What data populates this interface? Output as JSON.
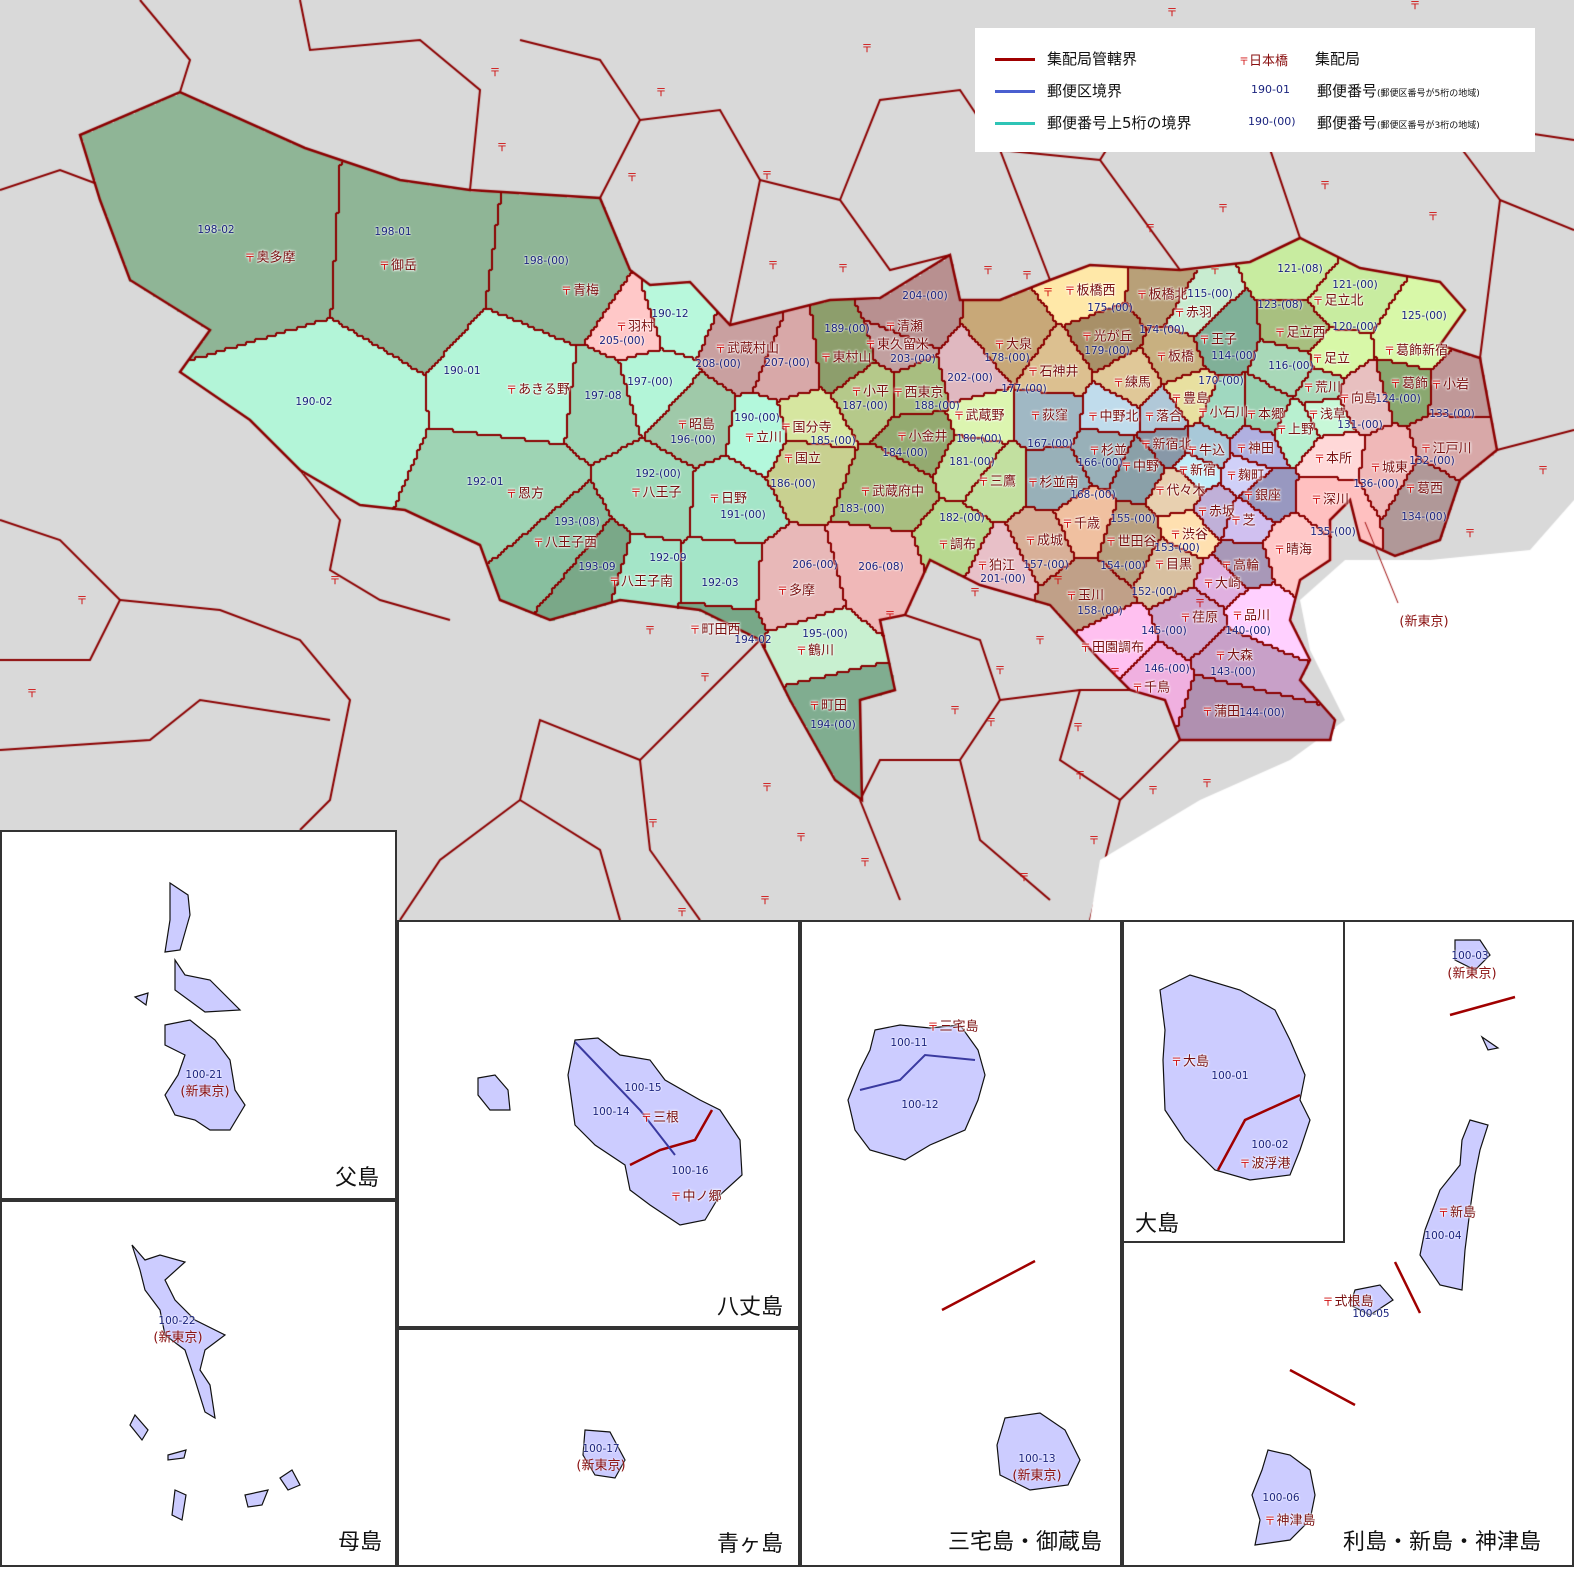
{
  "legend": {
    "items": [
      {
        "label": "集配局管轄界",
        "color": "#a00000"
      },
      {
        "label": "郵便区境界",
        "color": "#4a5fd0"
      },
      {
        "label": "郵便番号上5桁の境界",
        "color": "#2ec4b6"
      }
    ],
    "office_sample": "日本橋",
    "office_label": "集配局",
    "code5_sample": "190-01",
    "code5_label": "郵便番号",
    "code5_note": "(郵便区番号が5桁の地域)",
    "code3_sample": "190-(00)",
    "code3_label": "郵便番号",
    "code3_note": "(郵便区番号が3桁の地域)"
  },
  "map": {
    "labels": [
      {
        "office": "奥多摩",
        "code": "198-02"
      },
      {
        "office": "御岳",
        "code": "198-01"
      },
      {
        "office": "青梅",
        "code": "198-(00)"
      },
      {
        "office": "羽村",
        "code": "205-(00)"
      },
      {
        "office": null,
        "code": "190-12"
      },
      {
        "office": "武蔵村山",
        "code": "208-(00)"
      },
      {
        "office": null,
        "code": "207-(00)"
      },
      {
        "office": "東村山",
        "code": "189-(00)"
      },
      {
        "office": "清瀬",
        "code": "204-(00)"
      },
      {
        "office": "東久留米",
        "code": "203-(00)"
      },
      {
        "office": "あきる野",
        "code": "190-01"
      },
      {
        "office": null,
        "code": "197-08"
      },
      {
        "office": null,
        "code": "197-(00)"
      },
      {
        "office": null,
        "code": "190-02"
      },
      {
        "office": "昭島",
        "code": "196-(00)"
      },
      {
        "office": "立川",
        "code": "190-(00)"
      },
      {
        "office": "小平",
        "code": "187-(00)"
      },
      {
        "office": "西東京",
        "code": "188-(00)"
      },
      {
        "office": null,
        "code": "202-(00)"
      },
      {
        "office": "大泉",
        "code": "178-(00)"
      },
      {
        "office": "石神井",
        "code": "177-(00)"
      },
      {
        "office": "国分寺",
        "code": "185-(00)"
      },
      {
        "office": "小金井",
        "code": "184-(00)"
      },
      {
        "office": "武蔵野",
        "code": "180-(00)"
      },
      {
        "office": "国立",
        "code": "186-(00)"
      },
      {
        "office": null,
        "code": "181-(00)"
      },
      {
        "office": "三鷹",
        "code": null
      },
      {
        "office": "武蔵府中",
        "code": "183-(00)"
      },
      {
        "office": "恩方",
        "code": "192-01"
      },
      {
        "office": "八王子",
        "code": "192-(00)"
      },
      {
        "office": "日野",
        "code": "191-(00)"
      },
      {
        "office": "八王子西",
        "code": "193-(08)"
      },
      {
        "office": null,
        "code": "193-09"
      },
      {
        "office": "八王子南",
        "code": "192-09"
      },
      {
        "office": null,
        "code": "192-03"
      },
      {
        "office": "多摩",
        "code": "206-(00)"
      },
      {
        "office": null,
        "code": "206-(08)"
      },
      {
        "office": "調布",
        "code": "182-(00)"
      },
      {
        "office": "狛江",
        "code": "201-(00)"
      },
      {
        "office": "町田西",
        "code": "194-02"
      },
      {
        "office": "鶴川",
        "code": "195-(00)"
      },
      {
        "office": "町田",
        "code": "194-(00)"
      },
      {
        "office": "板橋西",
        "code": "175-(00)"
      },
      {
        "office": "板橋北",
        "code": "174-(00)"
      },
      {
        "office": "赤羽",
        "code": "115-(00)"
      },
      {
        "office": "光が丘",
        "code": "179-(00)"
      },
      {
        "office": "板橋",
        "code": null
      },
      {
        "office": "王子",
        "code": "114-(00)"
      },
      {
        "office": "足立北",
        "code": "121-(00)"
      },
      {
        "office": null,
        "code": "121-(08)"
      },
      {
        "office": "足立西",
        "code": "123-(08)"
      },
      {
        "office": "足立",
        "code": "120-(00)"
      },
      {
        "office": "葛飾新宿",
        "code": "125-(00)"
      },
      {
        "office": null,
        "code": "116-(00)"
      },
      {
        "office": "豊島",
        "code": "170-(00)"
      },
      {
        "office": "荒川",
        "code": null
      },
      {
        "office": "練馬",
        "code": null
      },
      {
        "office": "葛飾",
        "code": "124-(00)"
      },
      {
        "office": "小岩",
        "code": "133-(00)"
      },
      {
        "office": "向島",
        "code": "131-(00)"
      },
      {
        "office": "荻窪",
        "code": "167-(00)"
      },
      {
        "office": "中野北",
        "code": null
      },
      {
        "office": "落合",
        "code": null
      },
      {
        "office": "小石川",
        "code": null
      },
      {
        "office": "本郷",
        "code": null
      },
      {
        "office": "浅草",
        "code": null
      },
      {
        "office": "上野",
        "code": null
      },
      {
        "office": "杉並",
        "code": "166-(00)"
      },
      {
        "office": "中野",
        "code": null
      },
      {
        "office": "新宿北",
        "code": null
      },
      {
        "office": "牛込",
        "code": null
      },
      {
        "office": "神田",
        "code": null
      },
      {
        "office": "江戸川",
        "code": "132-(00)"
      },
      {
        "office": "本所",
        "code": null
      },
      {
        "office": "城東",
        "code": "136-(00)"
      },
      {
        "office": "新宿",
        "code": null
      },
      {
        "office": "麹町",
        "code": null
      },
      {
        "office": "杉並南",
        "code": "168-(00)"
      },
      {
        "office": "代々木",
        "code": null
      },
      {
        "office": "葛西",
        "code": "134-(00)"
      },
      {
        "office": "銀座",
        "code": null
      },
      {
        "office": "深川",
        "code": "135-(00)"
      },
      {
        "office": "赤坂",
        "code": null
      },
      {
        "office": "芝",
        "code": null
      },
      {
        "office": "千歳",
        "code": "155-(00)"
      },
      {
        "office": "成城",
        "code": "157-(00)"
      },
      {
        "office": "世田谷",
        "code": "154-(00)"
      },
      {
        "office": "渋谷",
        "code": "153-(00)"
      },
      {
        "office": "晴海",
        "code": null
      },
      {
        "office": "目黒",
        "code": "152-(00)"
      },
      {
        "office": "高輪",
        "code": null
      },
      {
        "office": "大崎",
        "code": null
      },
      {
        "office": "玉川",
        "code": "158-(00)"
      },
      {
        "office": "荏原",
        "code": "145-(00)"
      },
      {
        "office": "品川",
        "code": "140-(00)"
      },
      {
        "office": "田園調布",
        "code": null
      },
      {
        "office": "大森",
        "code": "143-(00)"
      },
      {
        "office": "千鳥",
        "code": "146-(00)"
      },
      {
        "office": "蒲田",
        "code": "144-(00)"
      }
    ],
    "annotation": "(新東京)"
  },
  "insets": [
    {
      "title": "父島",
      "labels": [
        {
          "text": "100-21",
          "type": "code"
        },
        {
          "text": "(新東京)",
          "type": "note"
        }
      ]
    },
    {
      "title": "母島",
      "labels": [
        {
          "text": "100-22",
          "type": "code"
        },
        {
          "text": "(新東京)",
          "type": "note"
        }
      ]
    },
    {
      "title": "八丈島",
      "labels": [
        {
          "text": "100-15",
          "type": "code"
        },
        {
          "text": "三根",
          "type": "office"
        },
        {
          "text": "100-14",
          "type": "code"
        },
        {
          "text": "100-16",
          "type": "code"
        },
        {
          "text": "中ノ郷",
          "type": "office"
        }
      ]
    },
    {
      "title": "青ヶ島",
      "labels": [
        {
          "text": "100-17",
          "type": "code"
        },
        {
          "text": "(新東京)",
          "type": "note"
        }
      ]
    },
    {
      "title": "三宅島・御蔵島",
      "labels": [
        {
          "text": "三宅島",
          "type": "office"
        },
        {
          "text": "100-11",
          "type": "code"
        },
        {
          "text": "100-12",
          "type": "code"
        },
        {
          "text": "100-13",
          "type": "code"
        },
        {
          "text": "(新東京)",
          "type": "note"
        }
      ]
    },
    {
      "title": "大島",
      "labels": [
        {
          "text": "大島",
          "type": "office"
        },
        {
          "text": "100-01",
          "type": "code"
        },
        {
          "text": "100-02",
          "type": "code"
        },
        {
          "text": "波浮港",
          "type": "office"
        }
      ]
    },
    {
      "title": "利島・新島・神津島",
      "labels": [
        {
          "text": "100-03",
          "type": "code"
        },
        {
          "text": "(新東京)",
          "type": "note"
        },
        {
          "text": "新島",
          "type": "office"
        },
        {
          "text": "100-04",
          "type": "code"
        },
        {
          "text": "式根島",
          "type": "office"
        },
        {
          "text": "100-05",
          "type": "code"
        },
        {
          "text": "100-06",
          "type": "code"
        },
        {
          "text": "神津島",
          "type": "office"
        }
      ]
    }
  ],
  "colors": {
    "background": "#d9d9d9",
    "border": "#8b0000",
    "island_fill": "#ccccff",
    "office_text": "#7a1010",
    "code_text": "#1a237e",
    "sea": "#ffffff"
  }
}
